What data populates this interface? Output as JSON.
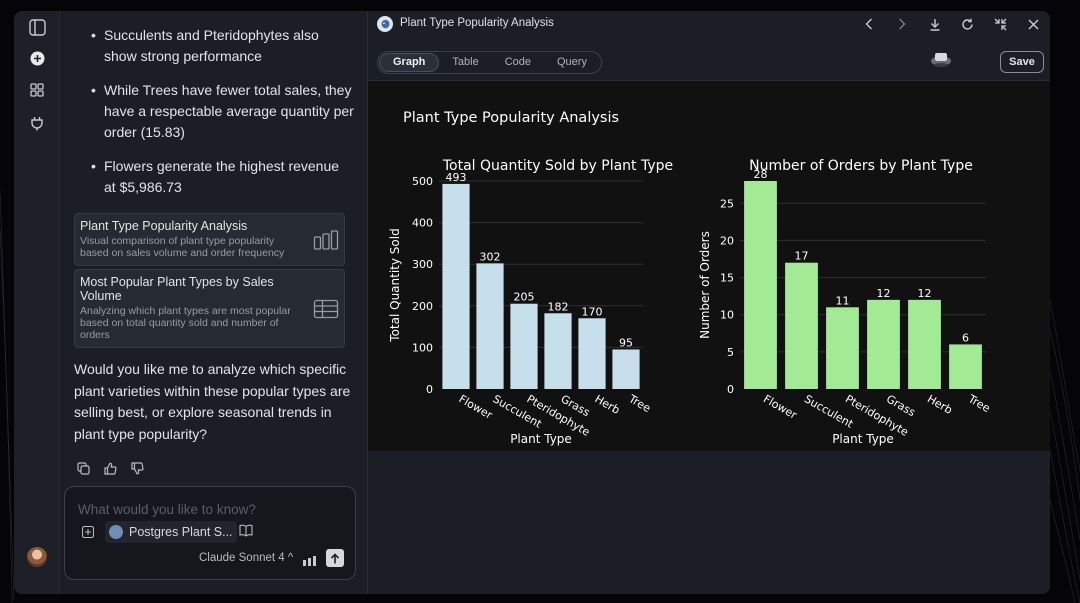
{
  "rail": {
    "icons": [
      "sidebar-toggle-icon",
      "new-chat-icon",
      "apps-grid-icon",
      "plug-icon"
    ]
  },
  "chat": {
    "bullets": [
      "Succulents and Pteridophytes also show strong performance",
      "While Trees have fewer total sales, they have a respectable average quantity per order (15.83)",
      "Flowers generate the highest revenue at $5,986.73"
    ],
    "artifacts": [
      {
        "title": "Plant Type Popularity Analysis",
        "description": "Visual comparison of plant type popularity based on sales volume and order frequency",
        "icon": "bar-chart-icon"
      },
      {
        "title": "Most Popular Plant Types by Sales Volume",
        "description": "Analyzing which plant types are most popular based on total quantity sold and number of orders",
        "icon": "table-icon"
      }
    ],
    "followup": "Would you like me to analyze which specific plant varieties within these popular types are selling best, or explore seasonal trends in plant type popularity?"
  },
  "composer": {
    "placeholder": "What would you like to know?",
    "db_chip": "Postgres Plant S...",
    "model": "Claude Sonnet 4 ^"
  },
  "panel": {
    "title": "Plant Type Popularity Analysis",
    "tabs": [
      "Graph",
      "Table",
      "Code",
      "Query"
    ],
    "active_tab": "Graph",
    "save_label": "Save"
  },
  "figure": {
    "title": "Plant Type Popularity Analysis",
    "background": "#111111"
  },
  "chart_data": [
    {
      "type": "bar",
      "title": "Total Quantity Sold by Plant Type",
      "xlabel": "Plant Type",
      "ylabel": "Total Quantity Sold",
      "categories": [
        "Flower",
        "Succulent",
        "Pteridophyte",
        "Grass",
        "Herb",
        "Tree"
      ],
      "values": [
        493,
        302,
        205,
        182,
        170,
        95
      ],
      "data_labels": [
        "493",
        "302",
        "205",
        "182",
        "170",
        "95"
      ],
      "yticks": [
        0,
        100,
        200,
        300,
        400,
        500
      ],
      "ylim": [
        0,
        500
      ],
      "color": "#c7dfeb"
    },
    {
      "type": "bar",
      "title": "Number of Orders by Plant Type",
      "xlabel": "Plant Type",
      "ylabel": "Number of Orders",
      "categories": [
        "Flower",
        "Succulent",
        "Pteridophyte",
        "Grass",
        "Herb",
        "Tree"
      ],
      "values": [
        28,
        17,
        11,
        12,
        12,
        6
      ],
      "data_labels": [
        "28",
        "17",
        "11",
        "12",
        "12",
        "6"
      ],
      "yticks": [
        0,
        5,
        10,
        15,
        20,
        25
      ],
      "ylim": [
        0,
        28
      ],
      "color": "#a3ea95"
    }
  ]
}
